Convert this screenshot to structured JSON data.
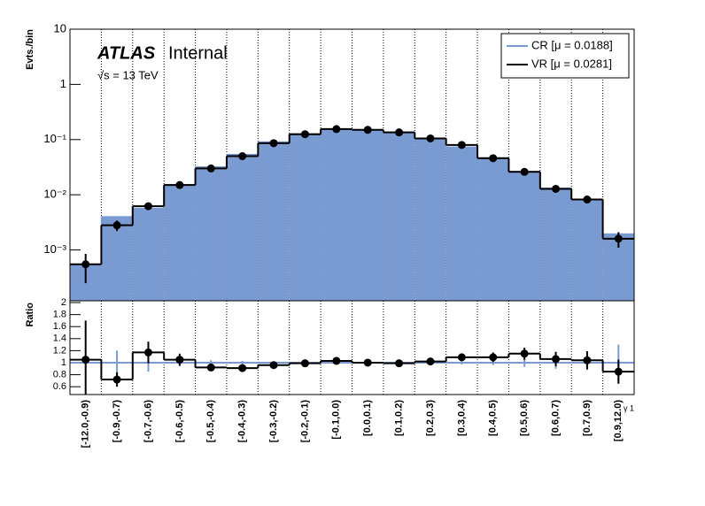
{
  "chart_data": [
    {
      "type": "histogram",
      "ylabel": "Evts./bin",
      "log_y": true,
      "grid": true,
      "legend": "top-right",
      "annotations": [
        "ATLAS",
        "Internal",
        "√s = 13 TeV"
      ],
      "ylim": [
        0.00012,
        10
      ],
      "yticks": [
        10,
        1,
        {
          "value": 0.1,
          "label": "10⁻¹"
        },
        {
          "value": 0.01,
          "label": "10⁻²"
        },
        {
          "value": 0.001,
          "label": "10⁻³"
        }
      ],
      "series": [
        {
          "name": "CR [μ = 0.0188]",
          "color": "#7a9ad2",
          "style": "fill",
          "values": [
            0.00055,
            0.0041,
            0.0058,
            0.0156,
            0.0328,
            0.055,
            0.093,
            0.13,
            0.156,
            0.15,
            0.14,
            0.108,
            0.075,
            0.048,
            0.027,
            0.0135,
            0.0085,
            0.002
          ]
        },
        {
          "name": "VR [μ = 0.0281]",
          "color": "#000000",
          "style": "points",
          "values": [
            0.00055,
            0.0028,
            0.0062,
            0.015,
            0.03,
            0.05,
            0.086,
            0.125,
            0.155,
            0.15,
            0.135,
            0.105,
            0.08,
            0.046,
            0.026,
            0.0128,
            0.0082,
            0.0016
          ],
          "errors": [
            0.0003,
            0.0006,
            0.0006,
            0.001,
            0.002,
            0.003,
            0.004,
            0.005,
            0.006,
            0.006,
            0.005,
            0.004,
            0.004,
            0.003,
            0.002,
            0.0012,
            0.0009,
            0.0005
          ]
        }
      ]
    },
    {
      "type": "ratio",
      "ylabel": "Ratio",
      "xlabel": "γ 1",
      "grid": true,
      "categories": [
        "[-12.0,-0.9)",
        "[-0.9,-0.7)",
        "[-0.7,-0.6)",
        "[-0.6,-0.5)",
        "[-0.5,-0.4)",
        "[-0.4,-0.3)",
        "[-0.3,-0.2)",
        "[-0.2,-0.1)",
        "[-0.1,0.0)",
        "[0.0,0.1)",
        "[0.1,0.2)",
        "[0.2,0.3)",
        "[0.3,0.4)",
        "[0.4,0.5)",
        "[0.5,0.6)",
        "[0.6,0.7)",
        "[0.7,0.9)",
        "[0.9,12.0)"
      ],
      "ylim": [
        0.47,
        2.03
      ],
      "yticks": [
        2,
        1.8,
        1.6,
        1.4,
        1.2,
        1,
        0.8,
        0.6
      ],
      "series": [
        {
          "color": "#7a9ad2",
          "style": "line",
          "values": [
            1,
            1,
            1,
            1,
            1,
            1,
            1,
            1,
            1,
            1,
            1,
            1,
            1,
            1,
            1,
            1,
            1,
            1
          ],
          "errors": [
            0.05,
            0.2,
            0.15,
            0.06,
            0.04,
            0.03,
            0.02,
            0.02,
            0.02,
            0.02,
            0.02,
            0.02,
            0.03,
            0.04,
            0.07,
            0.1,
            0.12,
            0.3
          ]
        },
        {
          "color": "#000000",
          "style": "points",
          "values": [
            1.05,
            0.72,
            1.17,
            1.05,
            0.92,
            0.91,
            0.96,
            0.99,
            1.03,
            1.0,
            0.99,
            1.02,
            1.09,
            1.09,
            1.15,
            1.06,
            1.04,
            0.85
          ],
          "errors": [
            0.65,
            0.12,
            0.18,
            0.1,
            0.06,
            0.05,
            0.04,
            0.03,
            0.03,
            0.03,
            0.03,
            0.04,
            0.05,
            0.08,
            0.1,
            0.12,
            0.15,
            0.2
          ]
        }
      ]
    }
  ]
}
